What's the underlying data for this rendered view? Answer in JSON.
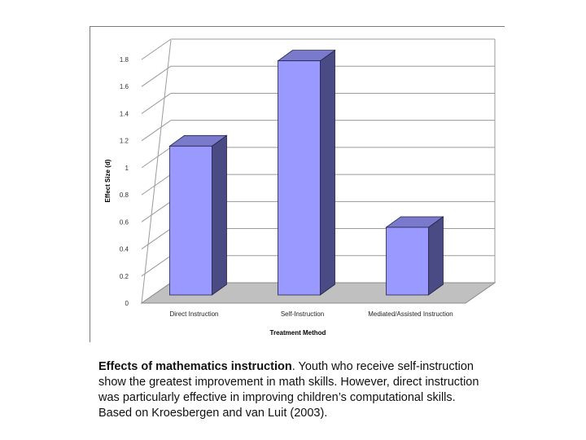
{
  "chart_data": {
    "type": "bar",
    "categories": [
      "Direct Instruction",
      "Self-Instruction",
      "Mediated/Assisted Instruction"
    ],
    "values": [
      1.16,
      1.79,
      0.56
    ],
    "xlabel": "Treatment Method",
    "ylabel": "Effect Size (d)",
    "ylim": [
      0,
      1.8
    ],
    "yticks": [
      "0",
      "0.2",
      "0.4",
      "0.6",
      "0.8",
      "1",
      "1.2",
      "1.4",
      "1.6",
      "1.8"
    ],
    "grid": true,
    "style": "3d",
    "colors": {
      "front": "#9999ff",
      "side": "#4a4a85",
      "top": "#7a7acc",
      "floor": "#c0c0c0"
    }
  },
  "caption": {
    "lead": "Effects of mathematics instruction",
    "text": ". Youth who receive self-instruction show the greatest improvement in math skills. However, direct instruction was particularly effective in improving children’s computational skills. Based on Kroesbergen and van Luit (2003)."
  }
}
